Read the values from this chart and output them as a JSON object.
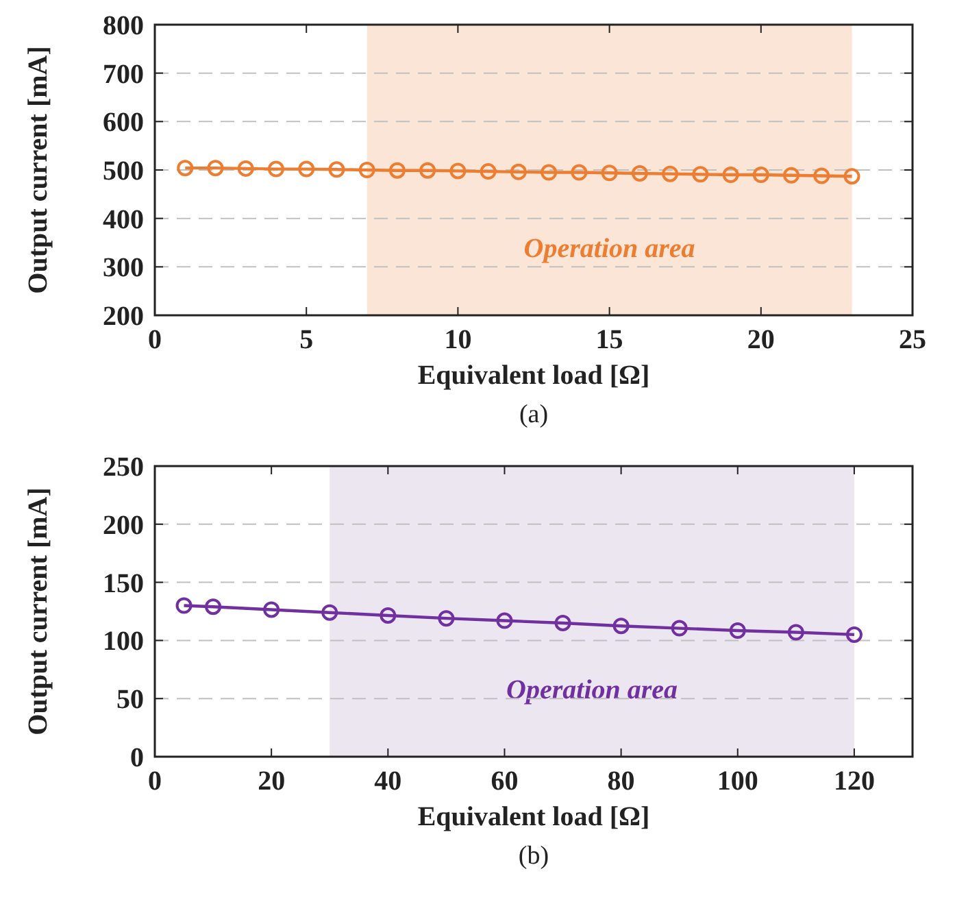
{
  "chart_data": [
    {
      "type": "line",
      "xlabel": "Equivalent load [Ω]",
      "ylabel": "Output current [mA]",
      "xlim": [
        0,
        25
      ],
      "xticks": [
        0,
        5,
        10,
        15,
        20,
        25
      ],
      "ylim": [
        200,
        800
      ],
      "yticks": [
        200,
        300,
        400,
        500,
        600,
        700,
        800
      ],
      "grid": "y",
      "marker": "circle",
      "line_style": "solid",
      "series": [
        {
          "color": "#ed7d31",
          "x": [
            1,
            2,
            3,
            4,
            5,
            6,
            7,
            8,
            9,
            10,
            11,
            12,
            13,
            14,
            15,
            16,
            17,
            18,
            19,
            20,
            21,
            22,
            23
          ],
          "values": [
            504,
            504,
            503,
            502,
            502,
            501,
            500,
            499,
            499,
            498,
            497,
            496,
            495,
            495,
            494,
            493,
            492,
            491,
            490,
            490,
            489,
            488,
            487
          ]
        }
      ],
      "bands": [
        {
          "axis": "x",
          "from": 7,
          "to": 23,
          "label": "Operation area",
          "color": "#fbe5d6"
        }
      ],
      "annotations": [
        "(a)"
      ]
    },
    {
      "type": "line",
      "xlabel": "Equivalent load [Ω]",
      "ylabel": "Output current [mA]",
      "xlim": [
        0,
        130
      ],
      "xticks": [
        0,
        20,
        40,
        60,
        80,
        100,
        120
      ],
      "ylim": [
        0,
        250
      ],
      "yticks": [
        0,
        50,
        100,
        150,
        200,
        250
      ],
      "grid": "y",
      "marker": "circle",
      "line_style": "solid",
      "series": [
        {
          "color": "#7030a0",
          "x": [
            5,
            10,
            20,
            30,
            40,
            50,
            60,
            70,
            80,
            90,
            100,
            110,
            120
          ],
          "values": [
            130,
            129,
            126.5,
            124,
            121.5,
            119,
            117,
            115,
            112.5,
            110.5,
            108.5,
            107,
            105
          ]
        }
      ],
      "bands": [
        {
          "axis": "x",
          "from": 30,
          "to": 120,
          "label": "Operation area",
          "color": "#ebe6f0"
        }
      ],
      "annotations": [
        "(b)"
      ]
    }
  ]
}
